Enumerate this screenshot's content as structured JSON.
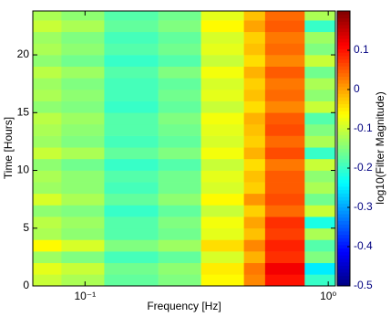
{
  "chart_data": {
    "type": "heatmap",
    "xlabel": "Frequency [Hz]",
    "ylabel": "Time [Hours]",
    "colorbar_label": "log10(Filter Magnitude)",
    "xscale": "log",
    "colormap": "jet",
    "xlim": [
      0.061,
      1.07
    ],
    "xticks": [
      {
        "value": 0.1,
        "label": "10⁻¹"
      },
      {
        "value": 1,
        "label": "10⁰"
      }
    ],
    "ylim": [
      0,
      23.8
    ],
    "yticks": [
      0,
      5,
      10,
      15,
      20
    ],
    "clim": [
      -0.5,
      0.2
    ],
    "cticks": [
      0.1,
      0,
      -0.1,
      -0.2,
      -0.3,
      -0.4,
      -0.5
    ],
    "x_edges": [
      0.061,
      0.08,
      0.12,
      0.2,
      0.3,
      0.45,
      0.55,
      0.8,
      1.07
    ],
    "y_edges": [
      0,
      1,
      2,
      3,
      4,
      5,
      6,
      7,
      8,
      9,
      10,
      11,
      12,
      13,
      14,
      15,
      16,
      17,
      18,
      19,
      20,
      21,
      22,
      23,
      23.8
    ],
    "z": [
      [
        -0.1,
        -0.12,
        -0.17,
        -0.15,
        -0.06,
        0.02,
        0.1,
        -0.2
      ],
      [
        -0.08,
        -0.1,
        -0.16,
        -0.14,
        -0.05,
        0.03,
        0.12,
        -0.25
      ],
      [
        -0.13,
        -0.15,
        -0.19,
        -0.17,
        -0.09,
        -0.01,
        0.08,
        -0.15
      ],
      [
        -0.06,
        -0.09,
        -0.15,
        -0.13,
        -0.04,
        0.02,
        0.09,
        -0.18
      ],
      [
        -0.12,
        -0.14,
        -0.18,
        -0.16,
        -0.08,
        -0.02,
        0.07,
        -0.12
      ],
      [
        -0.11,
        -0.13,
        -0.18,
        -0.15,
        -0.07,
        0.0,
        0.08,
        -0.22
      ],
      [
        -0.14,
        -0.15,
        -0.2,
        -0.17,
        -0.1,
        -0.03,
        0.04,
        -0.1
      ],
      [
        -0.09,
        -0.12,
        -0.17,
        -0.14,
        -0.06,
        0.01,
        0.06,
        -0.16
      ],
      [
        -0.13,
        -0.14,
        -0.19,
        -0.16,
        -0.09,
        -0.03,
        0.05,
        -0.12
      ],
      [
        -0.12,
        -0.14,
        -0.18,
        -0.16,
        -0.08,
        -0.02,
        0.05,
        -0.14
      ],
      [
        -0.14,
        -0.16,
        -0.2,
        -0.18,
        -0.1,
        -0.04,
        0.03,
        -0.1
      ],
      [
        -0.1,
        -0.12,
        -0.17,
        -0.15,
        -0.07,
        -0.01,
        0.06,
        -0.2
      ],
      [
        -0.13,
        -0.15,
        -0.19,
        -0.17,
        -0.09,
        -0.03,
        0.04,
        -0.12
      ],
      [
        -0.12,
        -0.14,
        -0.18,
        -0.16,
        -0.08,
        -0.02,
        0.06,
        -0.15
      ],
      [
        -0.11,
        -0.13,
        -0.18,
        -0.15,
        -0.07,
        -0.01,
        0.05,
        -0.18
      ],
      [
        -0.14,
        -0.15,
        -0.2,
        -0.17,
        -0.1,
        -0.04,
        0.02,
        -0.1
      ],
      [
        -0.12,
        -0.14,
        -0.19,
        -0.16,
        -0.08,
        -0.02,
        0.04,
        -0.14
      ],
      [
        -0.13,
        -0.15,
        -0.19,
        -0.17,
        -0.09,
        -0.03,
        0.03,
        -0.12
      ],
      [
        -0.11,
        -0.13,
        -0.18,
        -0.15,
        -0.07,
        -0.01,
        0.05,
        -0.16
      ],
      [
        -0.14,
        -0.16,
        -0.2,
        -0.18,
        -0.1,
        -0.04,
        0.02,
        -0.1
      ],
      [
        -0.12,
        -0.14,
        -0.18,
        -0.16,
        -0.08,
        -0.02,
        0.04,
        -0.15
      ],
      [
        -0.13,
        -0.15,
        -0.19,
        -0.17,
        -0.09,
        -0.03,
        0.03,
        -0.13
      ],
      [
        -0.1,
        -0.12,
        -0.17,
        -0.15,
        -0.06,
        0.0,
        0.05,
        -0.2
      ],
      [
        -0.12,
        -0.14,
        -0.18,
        -0.16,
        -0.08,
        -0.02,
        0.04,
        -0.12
      ]
    ]
  }
}
